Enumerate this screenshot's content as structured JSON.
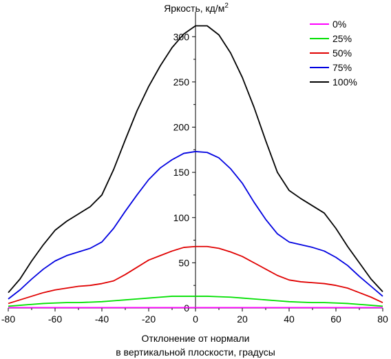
{
  "chart_data": {
    "type": "line",
    "title": "Яркость, кд/м",
    "title_superscript": "2",
    "xlabel_line1": "Отклонение от нормали",
    "xlabel_line2": "в вертикальной плоскости, градусы",
    "xlim": [
      -80,
      80
    ],
    "ylim": [
      0,
      320
    ],
    "xticks": [
      -80,
      -60,
      -40,
      -20,
      0,
      20,
      40,
      60,
      80
    ],
    "yticks": [
      0,
      50,
      100,
      150,
      200,
      250,
      300
    ],
    "grid": false,
    "legend_position": "top-right",
    "x": [
      -80,
      -75,
      -70,
      -65,
      -60,
      -55,
      -50,
      -45,
      -40,
      -35,
      -30,
      -25,
      -20,
      -15,
      -10,
      -5,
      0,
      5,
      10,
      15,
      20,
      25,
      30,
      35,
      40,
      45,
      50,
      55,
      60,
      65,
      70,
      75,
      80
    ],
    "series": [
      {
        "name": "0%",
        "color": "#ff00ff",
        "values": [
          0.5,
          0.5,
          0.5,
          0.5,
          0.5,
          0.5,
          0.5,
          0.5,
          0.5,
          0.5,
          0.5,
          0.5,
          0.5,
          0.5,
          0.5,
          0.5,
          0.5,
          0.5,
          0.5,
          0.5,
          0.5,
          0.5,
          0.5,
          0.5,
          0.5,
          0.5,
          0.5,
          0.5,
          0.5,
          0.5,
          0.5,
          0.5,
          0.5
        ]
      },
      {
        "name": "25%",
        "color": "#00e000",
        "values": [
          2,
          3,
          4,
          5,
          5.5,
          6,
          6,
          6.5,
          7,
          8,
          9,
          10,
          11,
          12,
          13,
          13,
          13,
          13,
          12.5,
          12,
          11,
          10,
          9,
          8,
          7,
          6.5,
          6,
          6,
          5.5,
          5,
          4,
          3,
          2
        ]
      },
      {
        "name": "50%",
        "color": "#e00000",
        "values": [
          5,
          9,
          13,
          17,
          20,
          22,
          24,
          25,
          27,
          30,
          37,
          45,
          53,
          58,
          63,
          67,
          68,
          68,
          66,
          62,
          57,
          50,
          43,
          36,
          31,
          29,
          28,
          27,
          25,
          22,
          17,
          12,
          6
        ]
      },
      {
        "name": "75%",
        "color": "#0000e0",
        "values": [
          10,
          20,
          32,
          43,
          52,
          58,
          62,
          66,
          73,
          88,
          107,
          125,
          142,
          155,
          164,
          171,
          173,
          172,
          166,
          154,
          138,
          117,
          98,
          82,
          73,
          70,
          67,
          63,
          56,
          47,
          35,
          24,
          13
        ]
      },
      {
        "name": "100%",
        "color": "#000000",
        "values": [
          17,
          32,
          52,
          70,
          86,
          96,
          104,
          112,
          125,
          153,
          186,
          218,
          245,
          268,
          288,
          303,
          312,
          312,
          302,
          282,
          255,
          222,
          185,
          150,
          130,
          121,
          113,
          105,
          88,
          68,
          50,
          32,
          18
        ]
      }
    ]
  }
}
